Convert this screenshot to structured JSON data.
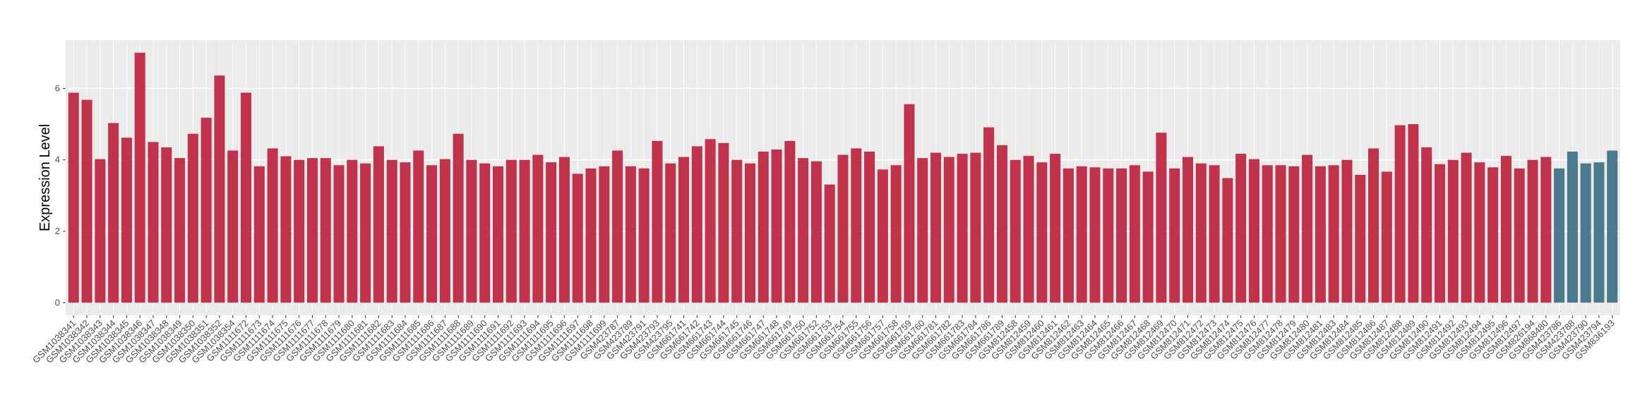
{
  "chart_data": {
    "type": "bar",
    "y_label": "Expression Level",
    "categories": [
      "GSM1038341",
      "GSM1038342",
      "GSM1038343",
      "GSM1038344",
      "GSM1038345",
      "GSM1038346",
      "GSM1038347",
      "GSM1038348",
      "GSM1038349",
      "GSM1038350",
      "GSM1038351",
      "GSM1038352",
      "GSM1038354",
      "GSM1111672",
      "GSM1111673",
      "GSM1111674",
      "GSM1111675",
      "GSM1111676",
      "GSM1111677",
      "GSM1111678",
      "GSM1111679",
      "GSM1111680",
      "GSM1111681",
      "GSM1111682",
      "GSM1111683",
      "GSM1111684",
      "GSM1111685",
      "GSM1111686",
      "GSM1111687",
      "GSM1111688",
      "GSM1111689",
      "GSM1111690",
      "GSM1111691",
      "GSM1111692",
      "GSM1111693",
      "GSM1111694",
      "GSM1111695",
      "GSM1111696",
      "GSM1111697",
      "GSM1111698",
      "GSM1111699",
      "GSM423787",
      "GSM423789",
      "GSM423791",
      "GSM423793",
      "GSM423795",
      "GSM661741",
      "GSM661742",
      "GSM661743",
      "GSM661744",
      "GSM661745",
      "GSM661746",
      "GSM661747",
      "GSM661748",
      "GSM661749",
      "GSM661750",
      "GSM661752",
      "GSM661753",
      "GSM661754",
      "GSM661755",
      "GSM661756",
      "GSM661757",
      "GSM661758",
      "GSM661759",
      "GSM661760",
      "GSM661781",
      "GSM661782",
      "GSM661783",
      "GSM661784",
      "GSM661786",
      "GSM661789",
      "GSM812458",
      "GSM812459",
      "GSM812460",
      "GSM812461",
      "GSM812462",
      "GSM812463",
      "GSM812464",
      "GSM812465",
      "GSM812466",
      "GSM812467",
      "GSM812468",
      "GSM812469",
      "GSM812470",
      "GSM812471",
      "GSM812472",
      "GSM812473",
      "GSM812474",
      "GSM812475",
      "GSM812476",
      "GSM812477",
      "GSM812478",
      "GSM812479",
      "GSM812480",
      "GSM812481",
      "GSM812483",
      "GSM812484",
      "GSM812485",
      "GSM812486",
      "GSM812487",
      "GSM812488",
      "GSM812489",
      "GSM812490",
      "GSM812491",
      "GSM812492",
      "GSM812493",
      "GSM812494",
      "GSM812495",
      "GSM812496",
      "GSM812497",
      "GSM826194",
      "GSM868480",
      "GSM423786",
      "GSM423788",
      "GSM423790",
      "GSM423794",
      "GSM836193"
    ],
    "values": [
      5.88,
      5.68,
      4.02,
      5.03,
      4.62,
      7.0,
      4.5,
      4.35,
      4.05,
      4.73,
      5.18,
      6.36,
      4.26,
      5.88,
      3.82,
      4.32,
      4.1,
      4.0,
      4.05,
      4.05,
      3.85,
      4.0,
      3.9,
      4.38,
      4.0,
      3.93,
      4.26,
      3.85,
      4.02,
      4.73,
      4.0,
      3.9,
      3.82,
      4.0,
      4.0,
      4.14,
      3.93,
      4.08,
      3.61,
      3.76,
      3.82,
      4.26,
      3.82,
      3.76,
      4.53,
      3.9,
      4.08,
      4.38,
      4.58,
      4.47,
      4.0,
      3.9,
      4.23,
      4.29,
      4.53,
      4.05,
      3.96,
      3.31,
      4.14,
      4.32,
      4.23,
      3.73,
      3.85,
      5.56,
      4.05,
      4.2,
      4.08,
      4.17,
      4.2,
      4.91,
      4.41,
      4.0,
      4.11,
      3.93,
      4.17,
      3.76,
      3.82,
      3.79,
      3.76,
      3.76,
      3.85,
      3.67,
      4.76,
      3.76,
      4.08,
      3.9,
      3.85,
      3.49,
      4.17,
      4.02,
      3.85,
      3.85,
      3.82,
      4.14,
      3.82,
      3.85,
      4.0,
      3.58,
      4.32,
      3.67,
      4.97,
      5.0,
      4.35,
      3.88,
      4.0,
      4.2,
      3.93,
      3.79,
      4.11,
      3.76,
      4.0,
      4.08,
      3.76,
      4.23,
      3.9,
      3.93,
      4.26
    ],
    "colors": [
      "#c0334a",
      "#c0334a",
      "#c0334a",
      "#c0334a",
      "#c0334a",
      "#c0334a",
      "#c0334a",
      "#c0334a",
      "#c0334a",
      "#c0334a",
      "#c0334a",
      "#c0334a",
      "#c0334a",
      "#c0334a",
      "#c0334a",
      "#c0334a",
      "#c0334a",
      "#c0334a",
      "#c0334a",
      "#c0334a",
      "#c0334a",
      "#c0334a",
      "#c0334a",
      "#c0334a",
      "#c0334a",
      "#c0334a",
      "#c0334a",
      "#c0334a",
      "#c0334a",
      "#c0334a",
      "#c0334a",
      "#c0334a",
      "#c0334a",
      "#c0334a",
      "#c0334a",
      "#c0334a",
      "#c0334a",
      "#c0334a",
      "#c0334a",
      "#c0334a",
      "#c0334a",
      "#c0334a",
      "#c0334a",
      "#c0334a",
      "#c0334a",
      "#c0334a",
      "#c0334a",
      "#c0334a",
      "#c0334a",
      "#c0334a",
      "#c0334a",
      "#c0334a",
      "#c0334a",
      "#c0334a",
      "#c0334a",
      "#c0334a",
      "#c0334a",
      "#c0334a",
      "#c0334a",
      "#c0334a",
      "#c0334a",
      "#c0334a",
      "#c0334a",
      "#c0334a",
      "#c0334a",
      "#c0334a",
      "#c0334a",
      "#c0334a",
      "#c0334a",
      "#c0334a",
      "#c0334a",
      "#c0334a",
      "#c0334a",
      "#c0334a",
      "#c0334a",
      "#c0334a",
      "#c0334a",
      "#c0334a",
      "#c0334a",
      "#c0334a",
      "#c0334a",
      "#c0334a",
      "#c0334a",
      "#c0334a",
      "#c0334a",
      "#c0334a",
      "#c0334a",
      "#c0334a",
      "#c0334a",
      "#c0334a",
      "#c0334a",
      "#c0334a",
      "#c0334a",
      "#c0334a",
      "#c0334a",
      "#c0334a",
      "#c0334a",
      "#c0334a",
      "#c0334a",
      "#c0334a",
      "#c0334a",
      "#c0334a",
      "#c0334a",
      "#c0334a",
      "#c0334a",
      "#c0334a",
      "#c0334a",
      "#c0334a",
      "#c0334a",
      "#c0334a",
      "#c0334a",
      "#c0334a",
      "#4a7a8c",
      "#4a7a8c",
      "#4a7a8c",
      "#4a7a8c",
      "#4a7a8c"
    ],
    "ylim": [
      -0.35,
      7.35
    ],
    "yticks": [
      0,
      2,
      4,
      6
    ],
    "grid": true
  }
}
